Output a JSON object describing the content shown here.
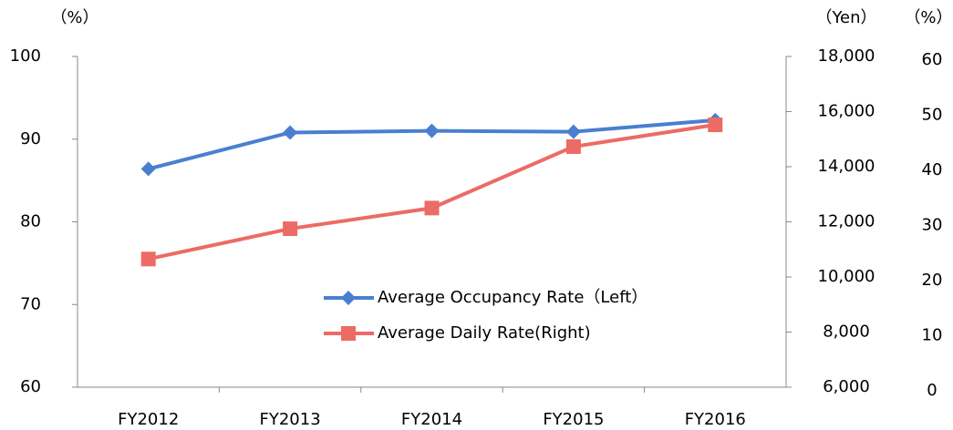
{
  "chart_data": {
    "type": "line",
    "ylabel": "（%）",
    "y2label": "（Yen）",
    "y3label": "（%）",
    "categories": [
      "FY2012",
      "FY2013",
      "FY2014",
      "FY2015",
      "FY2016"
    ],
    "series": [
      {
        "name": "Average Occupancy Rate（Left）",
        "color": "#4a7fd0",
        "marker": "diamond",
        "axis": "y",
        "values": [
          86.4,
          90.8,
          91.0,
          90.9,
          92.3
        ]
      },
      {
        "name": "Average Daily Rate(Right)",
        "color": "#ec6b65",
        "marker": "square",
        "axis": "y2",
        "values": [
          10650,
          11750,
          12500,
          14730,
          15520
        ]
      }
    ],
    "ylim": [
      60,
      100
    ],
    "yticks": [
      60,
      70,
      80,
      90,
      100
    ],
    "y2lim": [
      6000,
      18000
    ],
    "y2ticks": [
      {
        "value": 6000,
        "label": "6,000"
      },
      {
        "value": 8000,
        "label": "8,000"
      },
      {
        "value": 10000,
        "label": "10,000"
      },
      {
        "value": 12000,
        "label": "12,000"
      },
      {
        "value": 14000,
        "label": "14,000"
      },
      {
        "value": 16000,
        "label": "16,000"
      },
      {
        "value": 18000,
        "label": "18,000"
      }
    ],
    "y3lim": [
      0,
      60
    ],
    "y3ticks": [
      0,
      10,
      20,
      30,
      40,
      50,
      60
    ],
    "grid": false,
    "legend": "lower right"
  }
}
